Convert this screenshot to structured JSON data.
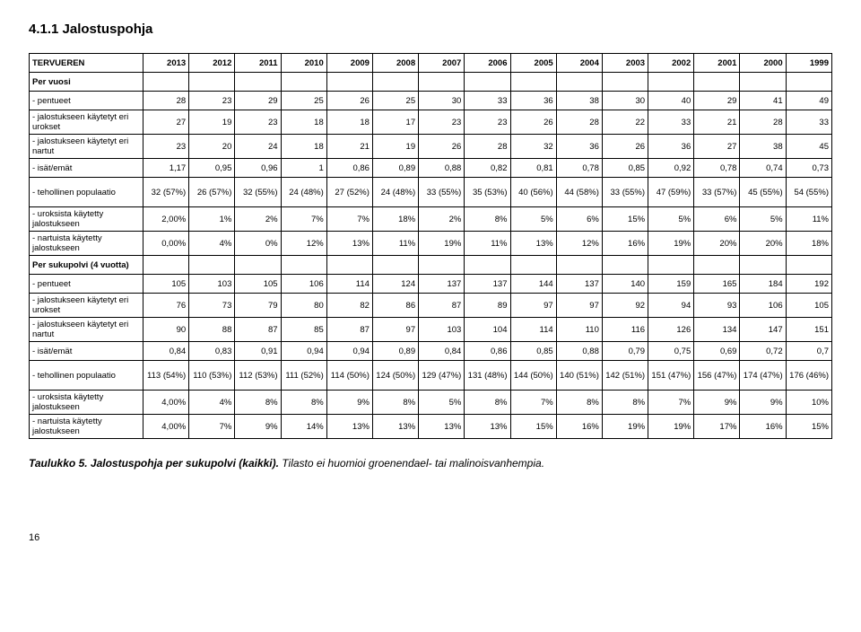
{
  "heading": "4.1.1 Jalostuspohja",
  "tableTitle": "TERVUEREN",
  "years": [
    "2013",
    "2012",
    "2011",
    "2010",
    "2009",
    "2008",
    "2007",
    "2006",
    "2005",
    "2004",
    "2003",
    "2002",
    "2001",
    "2000",
    "1999"
  ],
  "rows": [
    {
      "label": "Per vuosi",
      "values": [
        "",
        "",
        "",
        "",
        "",
        "",
        "",
        "",
        "",
        "",
        "",
        "",
        "",
        "",
        ""
      ],
      "bold": true
    },
    {
      "label": "- pentueet",
      "values": [
        "28",
        "23",
        "29",
        "25",
        "26",
        "25",
        "30",
        "33",
        "36",
        "38",
        "30",
        "40",
        "29",
        "41",
        "49"
      ]
    },
    {
      "label": "- jalostukseen käytetyt eri urokset",
      "values": [
        "27",
        "19",
        "23",
        "18",
        "18",
        "17",
        "23",
        "23",
        "26",
        "28",
        "22",
        "33",
        "21",
        "28",
        "33"
      ]
    },
    {
      "label": "- jalostukseen käytetyt eri nartut",
      "values": [
        "23",
        "20",
        "24",
        "18",
        "21",
        "19",
        "26",
        "28",
        "32",
        "36",
        "26",
        "36",
        "27",
        "38",
        "45"
      ]
    },
    {
      "label": "- isät/emät",
      "values": [
        "1,17",
        "0,95",
        "0,96",
        "1",
        "0,86",
        "0,89",
        "0,88",
        "0,82",
        "0,81",
        "0,78",
        "0,85",
        "0,92",
        "0,78",
        "0,74",
        "0,73"
      ]
    },
    {
      "label": "- tehollinen populaatio",
      "values": [
        "32 (57%)",
        "26 (57%)",
        "32 (55%)",
        "24 (48%)",
        "27 (52%)",
        "24 (48%)",
        "33 (55%)",
        "35 (53%)",
        "40 (56%)",
        "44 (58%)",
        "33 (55%)",
        "47 (59%)",
        "33 (57%)",
        "45 (55%)",
        "54 (55%)"
      ],
      "tall": true
    },
    {
      "label": "- uroksista käytetty jalostukseen",
      "values": [
        "2,00%",
        "1%",
        "2%",
        "7%",
        "7%",
        "18%",
        "2%",
        "8%",
        "5%",
        "6%",
        "15%",
        "5%",
        "6%",
        "5%",
        "11%"
      ]
    },
    {
      "label": "- nartuista käytetty jalostukseen",
      "values": [
        "0,00%",
        "4%",
        "0%",
        "12%",
        "13%",
        "11%",
        "19%",
        "11%",
        "13%",
        "12%",
        "16%",
        "19%",
        "20%",
        "20%",
        "18%"
      ]
    },
    {
      "label": "Per sukupolvi (4 vuotta)",
      "values": [
        "",
        "",
        "",
        "",
        "",
        "",
        "",
        "",
        "",
        "",
        "",
        "",
        "",
        "",
        ""
      ],
      "bold": true
    },
    {
      "label": "- pentueet",
      "values": [
        "105",
        "103",
        "105",
        "106",
        "114",
        "124",
        "137",
        "137",
        "144",
        "137",
        "140",
        "159",
        "165",
        "184",
        "192"
      ]
    },
    {
      "label": "- jalostukseen käytetyt eri urokset",
      "values": [
        "76",
        "73",
        "79",
        "80",
        "82",
        "86",
        "87",
        "89",
        "97",
        "97",
        "92",
        "94",
        "93",
        "106",
        "105"
      ]
    },
    {
      "label": "- jalostukseen käytetyt eri nartut",
      "values": [
        "90",
        "88",
        "87",
        "85",
        "87",
        "97",
        "103",
        "104",
        "114",
        "110",
        "116",
        "126",
        "134",
        "147",
        "151"
      ]
    },
    {
      "label": "- isät/emät",
      "values": [
        "0,84",
        "0,83",
        "0,91",
        "0,94",
        "0,94",
        "0,89",
        "0,84",
        "0,86",
        "0,85",
        "0,88",
        "0,79",
        "0,75",
        "0,69",
        "0,72",
        "0,7"
      ]
    },
    {
      "label": "- tehollinen populaatio",
      "values": [
        "113 (54%)",
        "110 (53%)",
        "112 (53%)",
        "111 (52%)",
        "114 (50%)",
        "124 (50%)",
        "129 (47%)",
        "131 (48%)",
        "144 (50%)",
        "140 (51%)",
        "142 (51%)",
        "151 (47%)",
        "156 (47%)",
        "174 (47%)",
        "176 (46%)"
      ],
      "tall": true
    },
    {
      "label": "- uroksista käytetty jalostukseen",
      "values": [
        "4,00%",
        "4%",
        "8%",
        "8%",
        "9%",
        "8%",
        "5%",
        "8%",
        "7%",
        "8%",
        "8%",
        "7%",
        "9%",
        "9%",
        "10%"
      ]
    },
    {
      "label": "- nartuista käytetty jalostukseen",
      "values": [
        "4,00%",
        "7%",
        "9%",
        "14%",
        "13%",
        "13%",
        "13%",
        "13%",
        "15%",
        "16%",
        "19%",
        "19%",
        "17%",
        "16%",
        "15%"
      ]
    }
  ],
  "captionPrefix": "Taulukko 5. Jalostuspohja per sukupolvi (kaikki).",
  "captionRest": " Tilasto ei huomioi groenendael- tai malinoisvanhempia.",
  "pageNumber": "16"
}
